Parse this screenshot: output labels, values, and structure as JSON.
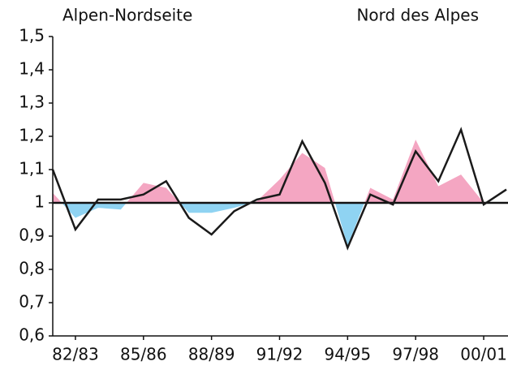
{
  "chart_data": {
    "type": "line",
    "annotations": [
      "Alpen-Nordseite",
      "Nord des Alpes"
    ],
    "categories": [
      null,
      "82/83",
      null,
      null,
      "85/86",
      null,
      null,
      "88/89",
      null,
      null,
      "91/92",
      null,
      null,
      "94/95",
      null,
      null,
      "97/98",
      null,
      null,
      "00/01",
      null
    ],
    "series": [
      {
        "type": "area",
        "color": "#f4a6c2",
        "color_below": "#8fd3f2",
        "values": [
          1.03,
          0.955,
          0.985,
          0.98,
          1.06,
          1.045,
          0.97,
          0.97,
          0.985,
          1.005,
          1.07,
          1.15,
          1.105,
          0.87,
          1.045,
          1.01,
          1.19,
          1.05,
          1.085,
          1.0,
          1.0
        ]
      },
      {
        "type": "line",
        "color": "#1a1a1a",
        "values": [
          1.1,
          0.92,
          1.01,
          1.01,
          1.025,
          1.065,
          0.955,
          0.905,
          0.975,
          1.01,
          1.025,
          1.185,
          1.06,
          0.865,
          1.025,
          0.995,
          1.155,
          1.065,
          1.22,
          0.995,
          1.04
        ]
      }
    ],
    "reference_line": 1,
    "ylim": [
      0.6,
      1.5
    ],
    "yticks": [
      {
        "value": 0.6,
        "label": "0,6"
      },
      {
        "value": 0.7,
        "label": "0,7"
      },
      {
        "value": 0.8,
        "label": "0,8"
      },
      {
        "value": 0.9,
        "label": "0,9"
      },
      1,
      {
        "value": 1.1,
        "label": "1,1"
      },
      {
        "value": 1.2,
        "label": "1,2"
      },
      {
        "value": 1.3,
        "label": "1,3"
      },
      {
        "value": 1.4,
        "label": "1,4"
      },
      {
        "value": 1.5,
        "label": "1,5"
      }
    ],
    "grid": false
  }
}
